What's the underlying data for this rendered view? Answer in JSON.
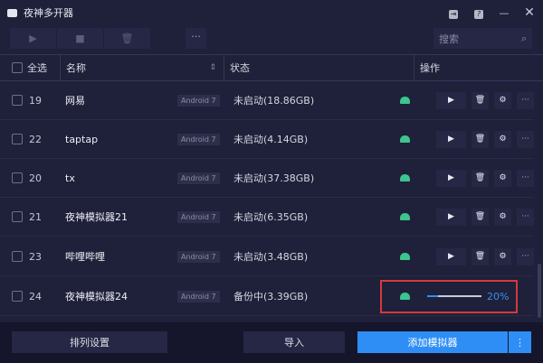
{
  "window": {
    "title": "夜神多开器"
  },
  "toolbar": {
    "more": "···",
    "search_placeholder": "搜索"
  },
  "header": {
    "select_all": "全选",
    "name": "名称",
    "status": "状态",
    "actions": "操作"
  },
  "rows": [
    {
      "num": "19",
      "name": "网易",
      "android": "Android 7",
      "status": "未启动(18.86GB)"
    },
    {
      "num": "22",
      "name": "taptap",
      "android": "Android 7",
      "status": "未启动(4.14GB)"
    },
    {
      "num": "20",
      "name": "tx",
      "android": "Android 7",
      "status": "未启动(37.38GB)"
    },
    {
      "num": "21",
      "name": "夜神模拟器21",
      "android": "Android 7",
      "status": "未启动(6.35GB)"
    },
    {
      "num": "23",
      "name": "哔哩哔哩",
      "android": "Android 7",
      "status": "未启动(3.48GB)"
    },
    {
      "num": "24",
      "name": "夜神模拟器24",
      "android": "Android 7",
      "status": "备份中(3.39GB)",
      "progress": 20,
      "progress_label": "20%"
    }
  ],
  "footer": {
    "sort": "排列设置",
    "import": "导入",
    "add": "添加模拟器",
    "add_more": "⋮"
  },
  "colors": {
    "accent": "#2f8ef5",
    "highlight": "#d33a3a",
    "android": "#3dc48f"
  }
}
